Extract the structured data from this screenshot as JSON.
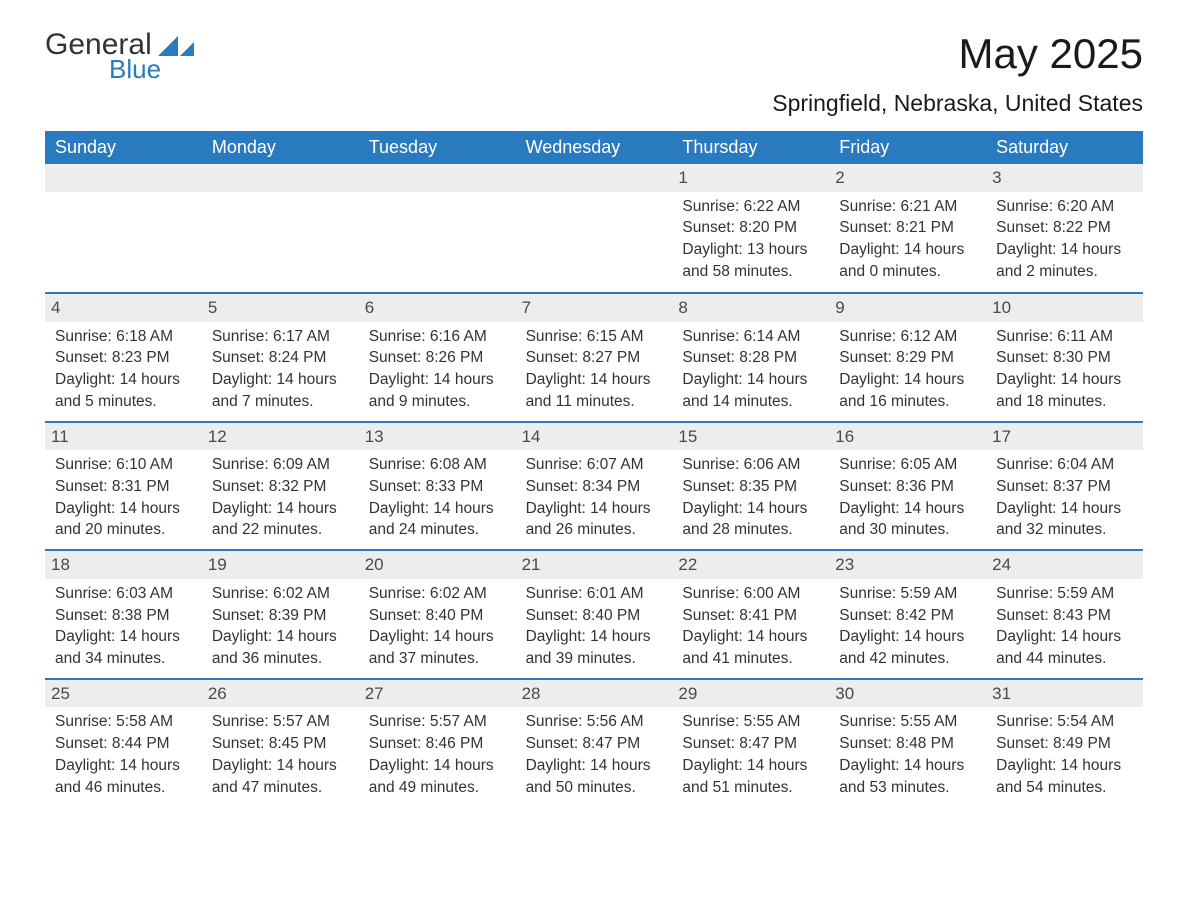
{
  "brand": {
    "word1": "General",
    "word2": "Blue"
  },
  "title": "May 2025",
  "location": "Springfield, Nebraska, United States",
  "colors": {
    "accent": "#2a7abf",
    "header_bg": "#2a7abf",
    "header_text": "#ffffff",
    "daynum_bg": "#ededed",
    "daynum_text": "#4a4a4a",
    "body_text": "#333333",
    "rule": "#2a7abf",
    "background": "#ffffff"
  },
  "typography": {
    "title_fontsize": 42,
    "location_fontsize": 23,
    "weekday_fontsize": 18,
    "daynum_fontsize": 17,
    "body_fontsize": 15.5
  },
  "layout": {
    "columns": 7,
    "rows": 5,
    "first_weekday_index": 4
  },
  "weekdays": [
    "Sunday",
    "Monday",
    "Tuesday",
    "Wednesday",
    "Thursday",
    "Friday",
    "Saturday"
  ],
  "days": [
    {
      "n": 1,
      "sr": "6:22 AM",
      "ss": "8:20 PM",
      "dl": "13 hours and 58 minutes."
    },
    {
      "n": 2,
      "sr": "6:21 AM",
      "ss": "8:21 PM",
      "dl": "14 hours and 0 minutes."
    },
    {
      "n": 3,
      "sr": "6:20 AM",
      "ss": "8:22 PM",
      "dl": "14 hours and 2 minutes."
    },
    {
      "n": 4,
      "sr": "6:18 AM",
      "ss": "8:23 PM",
      "dl": "14 hours and 5 minutes."
    },
    {
      "n": 5,
      "sr": "6:17 AM",
      "ss": "8:24 PM",
      "dl": "14 hours and 7 minutes."
    },
    {
      "n": 6,
      "sr": "6:16 AM",
      "ss": "8:26 PM",
      "dl": "14 hours and 9 minutes."
    },
    {
      "n": 7,
      "sr": "6:15 AM",
      "ss": "8:27 PM",
      "dl": "14 hours and 11 minutes."
    },
    {
      "n": 8,
      "sr": "6:14 AM",
      "ss": "8:28 PM",
      "dl": "14 hours and 14 minutes."
    },
    {
      "n": 9,
      "sr": "6:12 AM",
      "ss": "8:29 PM",
      "dl": "14 hours and 16 minutes."
    },
    {
      "n": 10,
      "sr": "6:11 AM",
      "ss": "8:30 PM",
      "dl": "14 hours and 18 minutes."
    },
    {
      "n": 11,
      "sr": "6:10 AM",
      "ss": "8:31 PM",
      "dl": "14 hours and 20 minutes."
    },
    {
      "n": 12,
      "sr": "6:09 AM",
      "ss": "8:32 PM",
      "dl": "14 hours and 22 minutes."
    },
    {
      "n": 13,
      "sr": "6:08 AM",
      "ss": "8:33 PM",
      "dl": "14 hours and 24 minutes."
    },
    {
      "n": 14,
      "sr": "6:07 AM",
      "ss": "8:34 PM",
      "dl": "14 hours and 26 minutes."
    },
    {
      "n": 15,
      "sr": "6:06 AM",
      "ss": "8:35 PM",
      "dl": "14 hours and 28 minutes."
    },
    {
      "n": 16,
      "sr": "6:05 AM",
      "ss": "8:36 PM",
      "dl": "14 hours and 30 minutes."
    },
    {
      "n": 17,
      "sr": "6:04 AM",
      "ss": "8:37 PM",
      "dl": "14 hours and 32 minutes."
    },
    {
      "n": 18,
      "sr": "6:03 AM",
      "ss": "8:38 PM",
      "dl": "14 hours and 34 minutes."
    },
    {
      "n": 19,
      "sr": "6:02 AM",
      "ss": "8:39 PM",
      "dl": "14 hours and 36 minutes."
    },
    {
      "n": 20,
      "sr": "6:02 AM",
      "ss": "8:40 PM",
      "dl": "14 hours and 37 minutes."
    },
    {
      "n": 21,
      "sr": "6:01 AM",
      "ss": "8:40 PM",
      "dl": "14 hours and 39 minutes."
    },
    {
      "n": 22,
      "sr": "6:00 AM",
      "ss": "8:41 PM",
      "dl": "14 hours and 41 minutes."
    },
    {
      "n": 23,
      "sr": "5:59 AM",
      "ss": "8:42 PM",
      "dl": "14 hours and 42 minutes."
    },
    {
      "n": 24,
      "sr": "5:59 AM",
      "ss": "8:43 PM",
      "dl": "14 hours and 44 minutes."
    },
    {
      "n": 25,
      "sr": "5:58 AM",
      "ss": "8:44 PM",
      "dl": "14 hours and 46 minutes."
    },
    {
      "n": 26,
      "sr": "5:57 AM",
      "ss": "8:45 PM",
      "dl": "14 hours and 47 minutes."
    },
    {
      "n": 27,
      "sr": "5:57 AM",
      "ss": "8:46 PM",
      "dl": "14 hours and 49 minutes."
    },
    {
      "n": 28,
      "sr": "5:56 AM",
      "ss": "8:47 PM",
      "dl": "14 hours and 50 minutes."
    },
    {
      "n": 29,
      "sr": "5:55 AM",
      "ss": "8:47 PM",
      "dl": "14 hours and 51 minutes."
    },
    {
      "n": 30,
      "sr": "5:55 AM",
      "ss": "8:48 PM",
      "dl": "14 hours and 53 minutes."
    },
    {
      "n": 31,
      "sr": "5:54 AM",
      "ss": "8:49 PM",
      "dl": "14 hours and 54 minutes."
    }
  ],
  "labels": {
    "sunrise": "Sunrise:",
    "sunset": "Sunset:",
    "daylight": "Daylight:"
  }
}
